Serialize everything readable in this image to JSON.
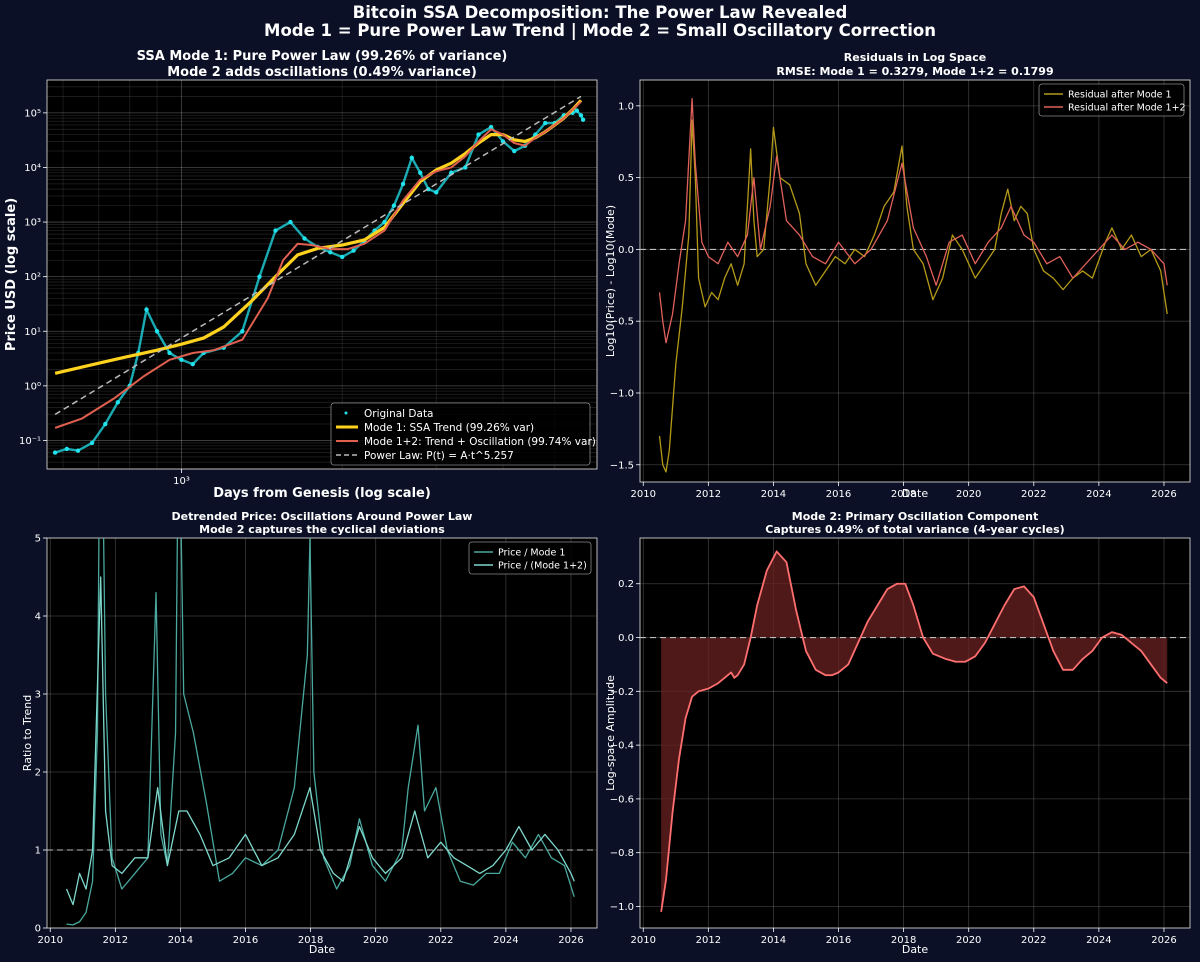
{
  "figure": {
    "title_line1": "Bitcoin SSA Decomposition: The Power Law Revealed",
    "title_line2": "Mode 1 = Pure Power Law Trend | Mode 2 = Small Oscillatory Correction"
  },
  "colors": {
    "background": "#0b1026",
    "plot_bg": "#000000",
    "original_data": "#22e3ee",
    "mode1": "#ffd21e",
    "mode12": "#e0604f",
    "power_law": "#bbbbbb",
    "residual_mode1": "#b49a18",
    "residual_mode12": "#e0605a",
    "ratio_mode1": "#4aa89e",
    "ratio_mode12": "#7fd8cc",
    "oscillation": "#ff6f6f",
    "oscillation_fill": "#6a2222"
  },
  "chart_data": [
    {
      "type": "line",
      "title": "SSA Mode 1: Pure Power Law (99.26% of variance)",
      "subtitle": "Mode 2 adds oscillations (0.49% variance)",
      "xlabel": "Days from Genesis (log scale)",
      "ylabel": "Price USD (log scale)",
      "x_scale": "log",
      "y_scale": "log",
      "xlim": [
        560,
        6000
      ],
      "ylim": [
        0.03,
        400000
      ],
      "xticks": [
        {
          "value": 1000,
          "label": "10³"
        }
      ],
      "yticks": [
        {
          "value": 0.1,
          "label": "10⁻¹"
        },
        {
          "value": 1,
          "label": "10⁰"
        },
        {
          "value": 10,
          "label": "10¹"
        },
        {
          "value": 100,
          "label": "10²"
        },
        {
          "value": 1000,
          "label": "10³"
        },
        {
          "value": 10000,
          "label": "10⁴"
        },
        {
          "value": 100000,
          "label": "10⁵"
        }
      ],
      "grid": true,
      "legend_position": "lower right",
      "series": [
        {
          "name": "Original Data",
          "style": "scatter",
          "color": "#22e3ee",
          "x": [
            580,
            610,
            640,
            680,
            720,
            760,
            800,
            830,
            860,
            900,
            950,
            1000,
            1050,
            1100,
            1200,
            1300,
            1400,
            1500,
            1600,
            1700,
            1800,
            1900,
            2000,
            2100,
            2200,
            2300,
            2400,
            2500,
            2600,
            2700,
            2800,
            2900,
            3000,
            3200,
            3400,
            3600,
            3800,
            4000,
            4200,
            4400,
            4600,
            4800,
            5000,
            5200,
            5400,
            5500,
            5600,
            5650
          ],
          "y": [
            0.06,
            0.07,
            0.065,
            0.09,
            0.2,
            0.5,
            1,
            4,
            25,
            10,
            4,
            3,
            2.5,
            4,
            5,
            10,
            100,
            700,
            1000,
            500,
            350,
            280,
            230,
            300,
            450,
            700,
            1000,
            2000,
            5000,
            15000,
            8000,
            4000,
            3500,
            8000,
            10000,
            40000,
            55000,
            30000,
            20000,
            25000,
            40000,
            65000,
            65000,
            90000,
            100000,
            110000,
            90000,
            75000
          ]
        },
        {
          "name": "Mode 1: SSA Trend (99.26% var)",
          "style": "line",
          "color": "#ffd21e",
          "x": [
            580,
            700,
            800,
            900,
            1000,
            1100,
            1200,
            1350,
            1500,
            1650,
            1800,
            2000,
            2200,
            2400,
            2600,
            2800,
            3000,
            3200,
            3400,
            3600,
            3800,
            4000,
            4200,
            4400,
            4600,
            4800,
            5000,
            5200,
            5400,
            5600
          ],
          "y": [
            1.7,
            2.6,
            3.5,
            4.5,
            5.8,
            7.5,
            12,
            35,
            100,
            250,
            330,
            380,
            470,
            800,
            2200,
            5500,
            9000,
            12000,
            18000,
            28000,
            40000,
            40000,
            32000,
            30000,
            35000,
            45000,
            60000,
            80000,
            115000,
            170000
          ]
        },
        {
          "name": "Mode 1+2: Trend + Oscillation (99.74% var)",
          "style": "line",
          "color": "#e0604f",
          "x": [
            580,
            650,
            750,
            850,
            950,
            1050,
            1150,
            1300,
            1450,
            1550,
            1650,
            1750,
            1900,
            2050,
            2200,
            2400,
            2600,
            2800,
            3000,
            3200,
            3400,
            3600,
            3800,
            4000,
            4200,
            4400,
            4600,
            4800,
            5000,
            5200,
            5400,
            5600
          ],
          "y": [
            0.17,
            0.25,
            0.6,
            1.5,
            3,
            4,
            4.5,
            7,
            40,
            200,
            400,
            380,
            320,
            320,
            400,
            700,
            2500,
            6000,
            8500,
            10000,
            16000,
            30000,
            50000,
            40000,
            28000,
            25000,
            35000,
            45000,
            60000,
            80000,
            115000,
            160000
          ]
        },
        {
          "name": "Power Law: P(t) = A·t^5.257",
          "style": "dashed",
          "color": "#bbbbbb",
          "x": [
            580,
            5600
          ],
          "y": [
            0.3,
            200000
          ]
        }
      ]
    },
    {
      "type": "line",
      "title": "Residuals in Log Space",
      "subtitle": "RMSE: Mode 1 = 0.3279, Mode 1+2 = 0.1799",
      "xlabel": "Date",
      "ylabel": "Log10(Price) - Log10(Mode)",
      "xlim": [
        2009.9,
        2026.8
      ],
      "ylim": [
        -1.62,
        1.18
      ],
      "xticks": [
        2010,
        2012,
        2014,
        2016,
        2018,
        2020,
        2022,
        2024,
        2026
      ],
      "yticks": [
        -1.5,
        -1.0,
        -0.5,
        0.0,
        0.5,
        1.0
      ],
      "ytick_labels": [
        "−1.5",
        "−1.0",
        "−0.5",
        "0.0",
        "0.5",
        "1.0"
      ],
      "hline": 0,
      "grid": true,
      "legend_position": "upper right",
      "series": [
        {
          "name": "Residual after Mode 1",
          "color": "#b49a18",
          "x": [
            2010.5,
            2010.6,
            2010.7,
            2010.8,
            2010.9,
            2011.0,
            2011.2,
            2011.4,
            2011.5,
            2011.6,
            2011.7,
            2011.9,
            2012.1,
            2012.3,
            2012.5,
            2012.7,
            2012.9,
            2013.1,
            2013.3,
            2013.4,
            2013.5,
            2013.7,
            2013.9,
            2014.0,
            2014.2,
            2014.5,
            2014.8,
            2015.0,
            2015.3,
            2015.6,
            2015.9,
            2016.2,
            2016.5,
            2016.8,
            2017.1,
            2017.4,
            2017.7,
            2017.95,
            2018.1,
            2018.3,
            2018.6,
            2018.9,
            2019.2,
            2019.5,
            2019.8,
            2020.2,
            2020.5,
            2020.8,
            2021.0,
            2021.2,
            2021.4,
            2021.6,
            2021.8,
            2022.0,
            2022.3,
            2022.6,
            2022.9,
            2023.2,
            2023.5,
            2023.8,
            2024.2,
            2024.4,
            2024.7,
            2025.0,
            2025.3,
            2025.6,
            2025.9,
            2026.1
          ],
          "y": [
            -1.3,
            -1.5,
            -1.55,
            -1.4,
            -1.1,
            -0.8,
            -0.4,
            0.1,
            0.9,
            0.5,
            -0.2,
            -0.4,
            -0.3,
            -0.35,
            -0.2,
            -0.1,
            -0.25,
            -0.1,
            0.7,
            0.2,
            -0.05,
            0.0,
            0.5,
            0.85,
            0.5,
            0.45,
            0.25,
            -0.1,
            -0.25,
            -0.15,
            -0.05,
            -0.1,
            0.0,
            -0.05,
            0.1,
            0.3,
            0.4,
            0.72,
            0.3,
            0.0,
            -0.1,
            -0.35,
            -0.2,
            0.1,
            0.0,
            -0.2,
            -0.1,
            0.0,
            0.25,
            0.42,
            0.2,
            0.3,
            0.25,
            0.0,
            -0.15,
            -0.2,
            -0.28,
            -0.2,
            -0.15,
            -0.2,
            0.05,
            0.15,
            0.0,
            0.1,
            -0.05,
            0.0,
            -0.15,
            -0.45
          ]
        },
        {
          "name": "Residual after Mode 1+2",
          "color": "#e0605a",
          "x": [
            2010.5,
            2010.6,
            2010.7,
            2010.9,
            2011.1,
            2011.3,
            2011.5,
            2011.6,
            2011.8,
            2012.0,
            2012.3,
            2012.6,
            2012.9,
            2013.2,
            2013.4,
            2013.6,
            2013.9,
            2014.1,
            2014.4,
            2014.8,
            2015.2,
            2015.6,
            2016.0,
            2016.5,
            2017.0,
            2017.5,
            2017.95,
            2018.3,
            2018.7,
            2019.0,
            2019.4,
            2019.8,
            2020.2,
            2020.6,
            2021.0,
            2021.3,
            2021.7,
            2022.0,
            2022.4,
            2022.8,
            2023.2,
            2023.6,
            2024.0,
            2024.4,
            2024.8,
            2025.2,
            2025.6,
            2026.0,
            2026.1
          ],
          "y": [
            -0.3,
            -0.5,
            -0.65,
            -0.45,
            -0.1,
            0.2,
            1.05,
            0.6,
            0.05,
            -0.05,
            -0.1,
            0.05,
            -0.05,
            0.1,
            0.5,
            0.0,
            0.3,
            0.65,
            0.2,
            0.1,
            -0.05,
            -0.1,
            0.05,
            -0.1,
            0.0,
            0.2,
            0.6,
            0.15,
            -0.05,
            -0.25,
            0.05,
            0.1,
            -0.1,
            0.05,
            0.15,
            0.3,
            0.1,
            0.05,
            -0.1,
            -0.05,
            -0.2,
            -0.1,
            0.0,
            0.1,
            0.0,
            0.05,
            0.0,
            -0.1,
            -0.25
          ]
        }
      ]
    },
    {
      "type": "line",
      "title": "Detrended Price: Oscillations Around Power Law",
      "subtitle": "Mode 2 captures the cyclical deviations",
      "xlabel": "Date",
      "ylabel": "Ratio to Trend",
      "xlim": [
        2009.9,
        2026.8
      ],
      "ylim": [
        0,
        5
      ],
      "xticks": [
        2010,
        2012,
        2014,
        2016,
        2018,
        2020,
        2022,
        2024,
        2026
      ],
      "yticks": [
        0,
        1,
        2,
        3,
        4,
        5
      ],
      "hline": 1,
      "grid": true,
      "legend_position": "upper right",
      "series": [
        {
          "name": "Price / Mode 1",
          "color": "#4aa89e",
          "x": [
            2010.5,
            2010.7,
            2010.9,
            2011.1,
            2011.3,
            2011.45,
            2011.55,
            2011.7,
            2011.9,
            2012.2,
            2012.6,
            2013.0,
            2013.25,
            2013.4,
            2013.6,
            2013.85,
            2013.95,
            2014.1,
            2014.4,
            2014.8,
            2015.2,
            2015.6,
            2016.0,
            2016.5,
            2017.0,
            2017.5,
            2017.9,
            2017.98,
            2018.1,
            2018.4,
            2018.8,
            2019.2,
            2019.5,
            2019.9,
            2020.3,
            2020.8,
            2021.0,
            2021.3,
            2021.5,
            2021.85,
            2022.2,
            2022.6,
            2023.0,
            2023.4,
            2023.8,
            2024.2,
            2024.6,
            2025.0,
            2025.4,
            2025.8,
            2026.1
          ],
          "y": [
            0.05,
            0.04,
            0.08,
            0.2,
            0.6,
            2.5,
            8,
            3,
            0.9,
            0.5,
            0.7,
            0.9,
            4.3,
            1.2,
            0.8,
            2.5,
            7,
            3,
            2.5,
            1.6,
            0.6,
            0.7,
            0.9,
            0.8,
            1.0,
            1.8,
            3.5,
            5,
            2,
            0.9,
            0.5,
            0.8,
            1.4,
            0.8,
            0.6,
            1.0,
            1.8,
            2.6,
            1.5,
            1.8,
            1.0,
            0.6,
            0.55,
            0.7,
            0.7,
            1.1,
            0.9,
            1.2,
            0.9,
            0.8,
            0.4
          ]
        },
        {
          "name": "Price / (Mode 1+2)",
          "color": "#7fd8cc",
          "x": [
            2010.5,
            2010.7,
            2010.9,
            2011.1,
            2011.3,
            2011.55,
            2011.7,
            2011.9,
            2012.2,
            2012.6,
            2013.0,
            2013.3,
            2013.6,
            2013.95,
            2014.2,
            2014.6,
            2015.0,
            2015.5,
            2016.0,
            2016.5,
            2017.0,
            2017.5,
            2017.98,
            2018.3,
            2018.7,
            2019.0,
            2019.5,
            2019.9,
            2020.3,
            2020.8,
            2021.2,
            2021.6,
            2022.0,
            2022.4,
            2022.8,
            2023.2,
            2023.6,
            2024.0,
            2024.4,
            2024.8,
            2025.2,
            2025.6,
            2026.0,
            2026.1
          ],
          "y": [
            0.5,
            0.3,
            0.7,
            0.5,
            1.0,
            4.5,
            1.5,
            0.8,
            0.7,
            0.9,
            0.9,
            1.8,
            0.8,
            1.5,
            1.5,
            1.2,
            0.8,
            0.9,
            1.2,
            0.8,
            0.9,
            1.2,
            1.8,
            1.0,
            0.7,
            0.6,
            1.3,
            0.9,
            0.7,
            0.9,
            1.5,
            0.9,
            1.1,
            0.9,
            0.8,
            0.7,
            0.8,
            1.0,
            1.3,
            1.0,
            1.2,
            1.0,
            0.7,
            0.6
          ]
        }
      ]
    },
    {
      "type": "area",
      "title": "Mode 2: Primary Oscillation Component",
      "subtitle": "Captures 0.49% of total variance (4-year cycles)",
      "xlabel": "Date",
      "ylabel": "Log-space Amplitude",
      "xlim": [
        2009.9,
        2026.8
      ],
      "ylim": [
        -1.08,
        0.37
      ],
      "xticks": [
        2010,
        2012,
        2014,
        2016,
        2018,
        2020,
        2022,
        2024,
        2026
      ],
      "yticks": [
        -1.0,
        -0.8,
        -0.6,
        -0.4,
        -0.2,
        0.0,
        0.2
      ],
      "ytick_labels": [
        "−1.0",
        "−0.8",
        "−0.6",
        "−0.4",
        "−0.2",
        "0.0",
        "0.2"
      ],
      "hline": 0,
      "grid": true,
      "series": [
        {
          "name": "Mode 2",
          "color": "#ff6f6f",
          "x": [
            2010.55,
            2010.7,
            2010.9,
            2011.1,
            2011.3,
            2011.5,
            2011.7,
            2012.0,
            2012.3,
            2012.5,
            2012.7,
            2012.8,
            2012.9,
            2013.1,
            2013.3,
            2013.5,
            2013.8,
            2014.1,
            2014.4,
            2014.7,
            2015.0,
            2015.3,
            2015.6,
            2015.8,
            2016.0,
            2016.3,
            2016.6,
            2016.9,
            2017.2,
            2017.5,
            2017.8,
            2018.05,
            2018.3,
            2018.6,
            2018.9,
            2019.3,
            2019.6,
            2019.9,
            2020.2,
            2020.5,
            2020.8,
            2021.1,
            2021.4,
            2021.7,
            2022.0,
            2022.3,
            2022.6,
            2022.9,
            2023.2,
            2023.5,
            2023.8,
            2024.1,
            2024.4,
            2024.7,
            2025.0,
            2025.3,
            2025.6,
            2025.9,
            2026.1
          ],
          "y": [
            -1.02,
            -0.9,
            -0.65,
            -0.45,
            -0.3,
            -0.22,
            -0.2,
            -0.19,
            -0.17,
            -0.15,
            -0.13,
            -0.15,
            -0.14,
            -0.1,
            0.0,
            0.12,
            0.25,
            0.32,
            0.28,
            0.1,
            -0.05,
            -0.12,
            -0.14,
            -0.14,
            -0.13,
            -0.1,
            -0.02,
            0.06,
            0.12,
            0.18,
            0.2,
            0.2,
            0.12,
            0.0,
            -0.06,
            -0.08,
            -0.09,
            -0.09,
            -0.07,
            -0.02,
            0.05,
            0.12,
            0.18,
            0.19,
            0.15,
            0.05,
            -0.05,
            -0.12,
            -0.12,
            -0.08,
            -0.05,
            0.0,
            0.02,
            0.01,
            -0.02,
            -0.05,
            -0.1,
            -0.15,
            -0.17
          ]
        }
      ]
    }
  ]
}
